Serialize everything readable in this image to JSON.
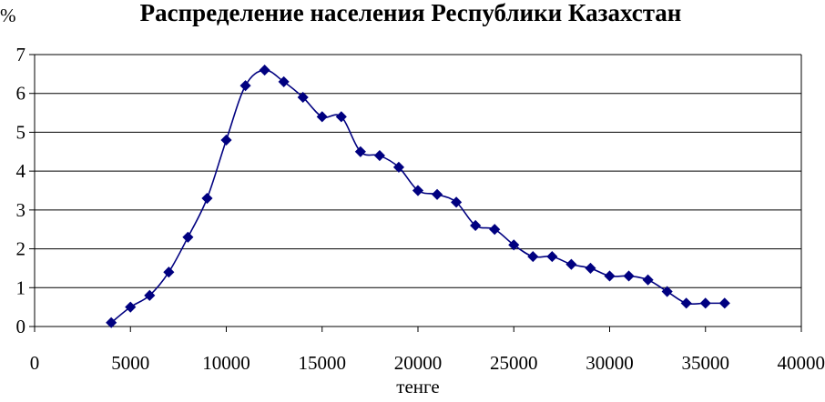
{
  "chart_data": {
    "type": "line",
    "title": "Распределение населения Республики Казахстан",
    "xlabel": "тенге",
    "ylabel": "%",
    "xlim": [
      0,
      40000
    ],
    "ylim": [
      0,
      7
    ],
    "x_ticks": [
      "0",
      "5000",
      "10000",
      "15000",
      "20000",
      "25000",
      "30000",
      "35000",
      "40000"
    ],
    "y_ticks": [
      "0",
      "1",
      "2",
      "3",
      "4",
      "5",
      "6",
      "7"
    ],
    "grid": "horizontal",
    "line_color": "#000080",
    "marker": "diamond",
    "series": [
      {
        "x": [
          4000,
          5000,
          6000,
          7000,
          8000,
          9000,
          10000,
          11000,
          12000,
          13000,
          14000,
          15000,
          16000,
          17000,
          18000,
          19000,
          20000,
          21000,
          22000,
          23000,
          24000,
          25000,
          26000,
          27000,
          28000,
          29000,
          30000,
          31000,
          32000,
          33000,
          34000,
          35000,
          36000
        ],
        "y": [
          0.1,
          0.5,
          0.8,
          1.4,
          2.3,
          3.3,
          4.8,
          6.2,
          6.6,
          6.3,
          5.9,
          5.4,
          5.4,
          4.5,
          4.4,
          4.1,
          3.5,
          3.4,
          3.2,
          2.6,
          2.5,
          2.1,
          1.8,
          1.8,
          1.6,
          1.5,
          1.3,
          1.3,
          1.2,
          0.9,
          0.6,
          0.6,
          0.6
        ]
      }
    ]
  }
}
